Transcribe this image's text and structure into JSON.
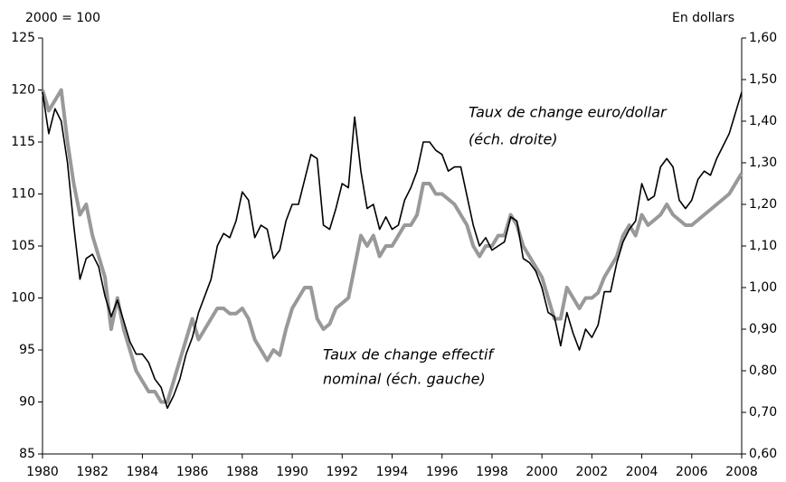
{
  "chart_data": {
    "type": "line",
    "ylabel": "2000 = 100",
    "y2label": "En dollars",
    "annotations": [
      {
        "text": "Taux de change euro/dollar",
        "series": 0
      },
      {
        "text": "(éch. droite)",
        "series": 0
      },
      {
        "text": "Taux de change effectif",
        "series": 1
      },
      {
        "text": "nominal (éch. gauche)",
        "series": 1
      }
    ],
    "x": [
      1980,
      1980.25,
      1980.5,
      1980.75,
      1981,
      1981.25,
      1981.5,
      1981.75,
      1982,
      1982.25,
      1982.5,
      1982.75,
      1983,
      1983.25,
      1983.5,
      1983.75,
      1984,
      1984.25,
      1984.5,
      1984.75,
      1985,
      1985.25,
      1985.5,
      1985.75,
      1986,
      1986.25,
      1986.5,
      1986.75,
      1987,
      1987.25,
      1987.5,
      1987.75,
      1988,
      1988.25,
      1988.5,
      1988.75,
      1989,
      1989.25,
      1989.5,
      1989.75,
      1990,
      1990.25,
      1990.5,
      1990.75,
      1991,
      1991.25,
      1991.5,
      1991.75,
      1992,
      1992.25,
      1992.5,
      1992.75,
      1993,
      1993.25,
      1993.5,
      1993.75,
      1994,
      1994.25,
      1994.5,
      1994.75,
      1995,
      1995.25,
      1995.5,
      1995.75,
      1996,
      1996.25,
      1996.5,
      1996.75,
      1997,
      1997.25,
      1997.5,
      1997.75,
      1998,
      1998.25,
      1998.5,
      1998.75,
      1999,
      1999.25,
      1999.5,
      1999.75,
      2000,
      2000.25,
      2000.5,
      2000.75,
      2001,
      2001.25,
      2001.5,
      2001.75,
      2002,
      2002.25,
      2002.5,
      2002.75,
      2003,
      2003.25,
      2003.5,
      2003.75,
      2004,
      2004.25,
      2004.5,
      2004.75,
      2005,
      2005.25,
      2005.5,
      2005.75,
      2006,
      2006.25,
      2006.5,
      2006.75,
      2007,
      2007.25,
      2007.5,
      2007.75,
      2008
    ],
    "series": [
      {
        "color": "#000000",
        "axis": "y2",
        "values": [
          1.47,
          1.37,
          1.43,
          1.4,
          1.3,
          1.15,
          1.02,
          1.07,
          1.08,
          1.05,
          0.98,
          0.93,
          0.97,
          0.92,
          0.87,
          0.84,
          0.84,
          0.82,
          0.78,
          0.76,
          0.71,
          0.74,
          0.78,
          0.84,
          0.88,
          0.94,
          0.98,
          1.02,
          1.1,
          1.13,
          1.12,
          1.16,
          1.23,
          1.21,
          1.12,
          1.15,
          1.14,
          1.07,
          1.09,
          1.16,
          1.2,
          1.2,
          1.26,
          1.32,
          1.31,
          1.15,
          1.14,
          1.19,
          1.25,
          1.24,
          1.41,
          1.28,
          1.19,
          1.2,
          1.14,
          1.17,
          1.14,
          1.15,
          1.21,
          1.24,
          1.28,
          1.35,
          1.35,
          1.33,
          1.32,
          1.28,
          1.29,
          1.29,
          1.22,
          1.15,
          1.1,
          1.12,
          1.09,
          1.1,
          1.11,
          1.17,
          1.16,
          1.07,
          1.06,
          1.04,
          1.0,
          0.94,
          0.93,
          0.86,
          0.94,
          0.89,
          0.85,
          0.9,
          0.88,
          0.91,
          0.99,
          0.99,
          1.06,
          1.11,
          1.14,
          1.16,
          1.25,
          1.21,
          1.22,
          1.29,
          1.31,
          1.29,
          1.21,
          1.19,
          1.21,
          1.26,
          1.28,
          1.27,
          1.31,
          1.34,
          1.37,
          1.42,
          1.47
        ]
      },
      {
        "color": "#999999",
        "axis": "y",
        "values": [
          120,
          118,
          119,
          120,
          115,
          111,
          108,
          109,
          106,
          104,
          102,
          97,
          100,
          97,
          95,
          93,
          92,
          91,
          91,
          90,
          90,
          92,
          94,
          96,
          98,
          96,
          97,
          98,
          99,
          99,
          98.5,
          98.5,
          99,
          98,
          96,
          95,
          94,
          95,
          94.5,
          97,
          99,
          100,
          101,
          101,
          98,
          97,
          97.5,
          99,
          99.5,
          100,
          103,
          106,
          105,
          106,
          104,
          105,
          105,
          106,
          107,
          107,
          108,
          111,
          111,
          110,
          110,
          109.5,
          109,
          108,
          107,
          105,
          104,
          105,
          105,
          106,
          106,
          108,
          107,
          105,
          104,
          103,
          102,
          100,
          98,
          98,
          101,
          100,
          99,
          100,
          100,
          100.5,
          102,
          103,
          104,
          106,
          107,
          106,
          108,
          107,
          107.5,
          108,
          109,
          108,
          107.5,
          107,
          107,
          107.5,
          108,
          108.5,
          109,
          109.5,
          110,
          111,
          112
        ]
      }
    ],
    "xlim": [
      1980,
      2008
    ],
    "xticks": [
      1980,
      1982,
      1984,
      1986,
      1988,
      1990,
      1992,
      1994,
      1996,
      1998,
      2000,
      2002,
      2004,
      2006,
      2008
    ],
    "ylim": [
      85,
      125
    ],
    "yticks": [
      85,
      90,
      95,
      100,
      105,
      110,
      115,
      120,
      125
    ],
    "y2lim": [
      0.6,
      1.6
    ],
    "y2ticks": [
      {
        "value": 0.6,
        "label": "0,60"
      },
      {
        "value": 0.7,
        "label": "0,70"
      },
      {
        "value": 0.8,
        "label": "0,80"
      },
      {
        "value": 0.9,
        "label": "0,90"
      },
      {
        "value": 1.0,
        "label": "1,00"
      },
      {
        "value": 1.1,
        "label": "1,10"
      },
      {
        "value": 1.2,
        "label": "1,20"
      },
      {
        "value": 1.3,
        "label": "1,30"
      },
      {
        "value": 1.4,
        "label": "1,40"
      },
      {
        "value": 1.5,
        "label": "1,50"
      },
      {
        "value": 1.6,
        "label": "1,60"
      }
    ],
    "grid": false
  }
}
